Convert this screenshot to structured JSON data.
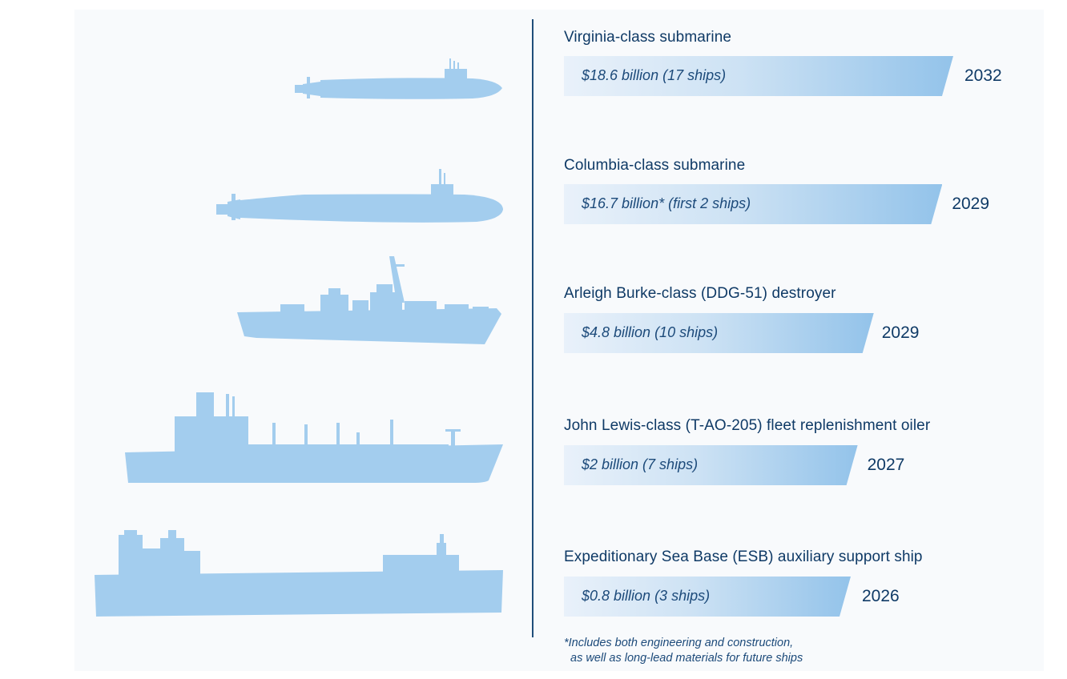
{
  "chart_data": {
    "type": "bar",
    "title": "",
    "xlabel": "",
    "ylabel": "",
    "categories": [
      "Virginia-class submarine",
      "Columbia-class submarine",
      "Arleigh Burke-class (DDG-51) destroyer",
      "John Lewis-class (T-AO-205) fleet replenishment oiler",
      "Expeditionary Sea Base (ESB) auxiliary support ship"
    ],
    "series": [
      {
        "values": [
          18.6,
          16.7,
          4.8,
          2,
          0.8
        ],
        "labels": [
          "$18.6 billion (17 ships)",
          "$16.7 billion* (first 2 ships)",
          "$4.8 billion (10 ships)",
          "$2 billion (7 ships)",
          "$0.8 billion (3 ships)"
        ]
      }
    ],
    "end_years": [
      "2032",
      "2029",
      "2029",
      "2027",
      "2026"
    ],
    "footnote": [
      "*Includes both engineering and construction,",
      "  as well as long-lead materials for future ships"
    ]
  },
  "colors": {
    "ship_silhouette": "#a3cdee",
    "bar_start": "#e9f1fa",
    "bar_end": "#93c3ea",
    "text": "#0f3a66",
    "divider": "#1f4e7a"
  }
}
